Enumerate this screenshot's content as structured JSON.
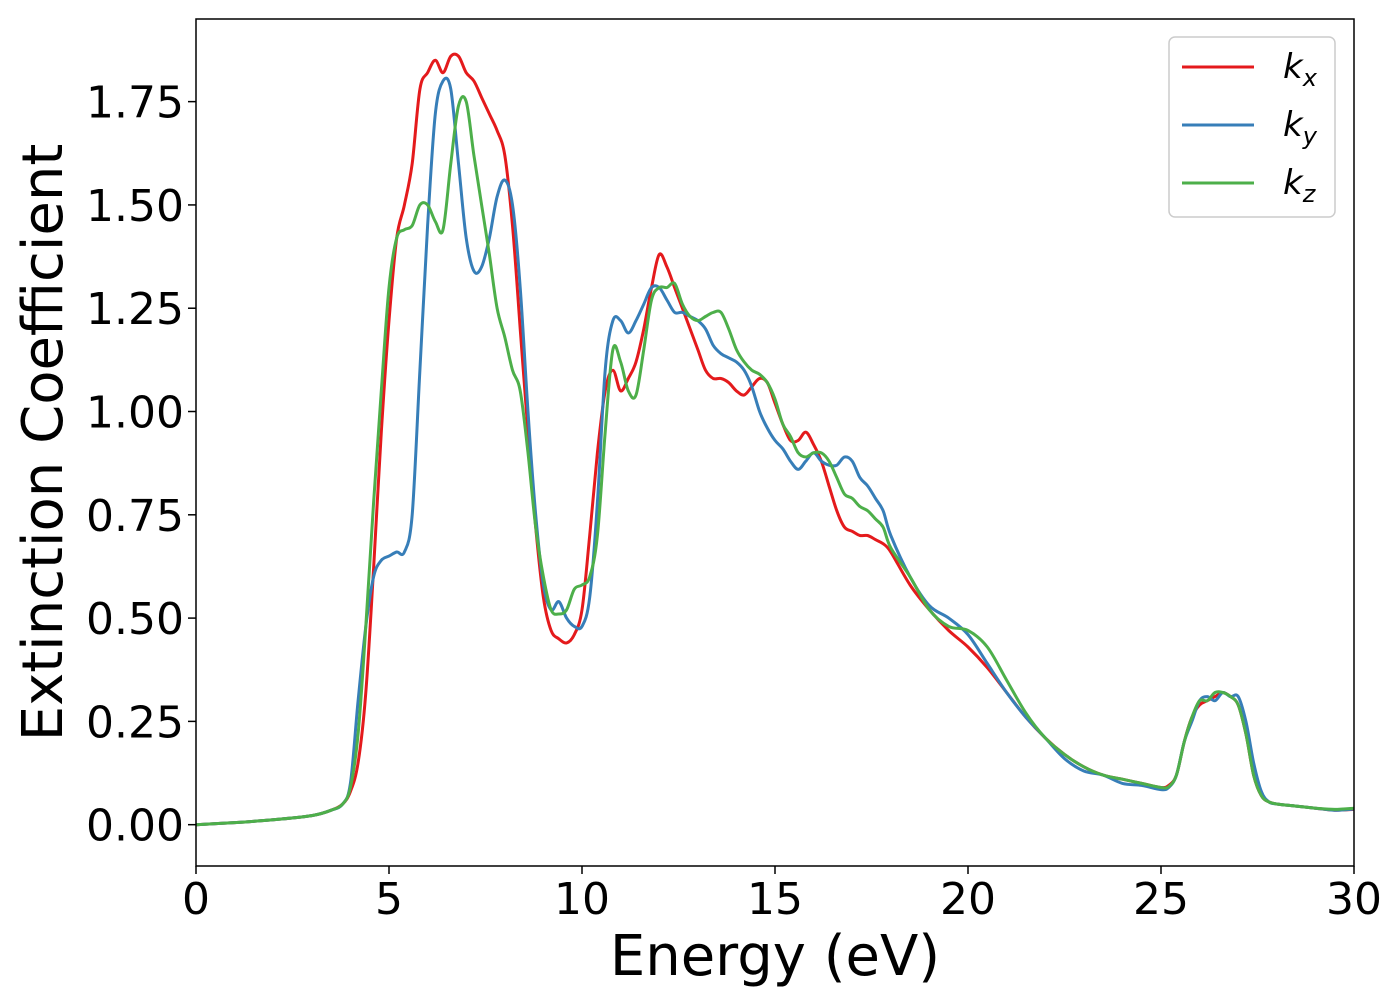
{
  "chart_data": {
    "type": "line",
    "title": "",
    "xlabel": "Energy (eV)",
    "ylabel": "Extinction Coefficient",
    "xlim": [
      0,
      30
    ],
    "ylim": [
      -0.1,
      1.95
    ],
    "xticks": [
      0,
      5,
      10,
      15,
      20,
      25,
      30
    ],
    "xtick_labels": [
      "0",
      "5",
      "10",
      "15",
      "20",
      "25",
      "30"
    ],
    "yticks": [
      0.0,
      0.25,
      0.5,
      0.75,
      1.0,
      1.25,
      1.5,
      1.75
    ],
    "ytick_labels": [
      "0.00",
      "0.25",
      "0.50",
      "0.75",
      "1.00",
      "1.25",
      "1.50",
      "1.75"
    ],
    "grid": false,
    "legend_position": "top-right",
    "series": [
      {
        "name": "k",
        "subscript": "x",
        "color": "#e41a1c",
        "x": [
          0,
          1,
          2,
          3,
          3.5,
          3.8,
          4.0,
          4.2,
          4.4,
          4.6,
          4.8,
          5.0,
          5.2,
          5.4,
          5.6,
          5.8,
          6.0,
          6.2,
          6.4,
          6.6,
          6.8,
          7.0,
          7.2,
          7.4,
          7.6,
          7.8,
          8.0,
          8.2,
          8.4,
          8.6,
          8.8,
          9.0,
          9.2,
          9.4,
          9.6,
          9.8,
          10.0,
          10.2,
          10.4,
          10.6,
          10.8,
          11.0,
          11.2,
          11.4,
          11.6,
          11.8,
          12.0,
          12.2,
          12.4,
          12.6,
          12.8,
          13.0,
          13.2,
          13.4,
          13.6,
          13.8,
          14.0,
          14.2,
          14.4,
          14.6,
          14.8,
          15.0,
          15.2,
          15.4,
          15.6,
          15.8,
          16.0,
          16.2,
          16.4,
          16.6,
          16.8,
          17.0,
          17.2,
          17.4,
          17.6,
          17.8,
          18.0,
          18.5,
          19.0,
          19.5,
          20.0,
          20.5,
          21.0,
          21.5,
          22.0,
          22.5,
          23.0,
          23.5,
          24.0,
          24.5,
          25.0,
          25.2,
          25.4,
          25.6,
          25.8,
          26.0,
          26.2,
          26.4,
          26.6,
          26.8,
          27.0,
          27.2,
          27.4,
          27.6,
          27.8,
          28.0,
          28.5,
          29.0,
          29.5,
          30.0
        ],
        "y": [
          0.0,
          0.005,
          0.012,
          0.022,
          0.035,
          0.05,
          0.08,
          0.15,
          0.32,
          0.62,
          0.95,
          1.22,
          1.42,
          1.5,
          1.6,
          1.78,
          1.82,
          1.85,
          1.82,
          1.86,
          1.86,
          1.82,
          1.8,
          1.76,
          1.72,
          1.68,
          1.62,
          1.45,
          1.2,
          0.95,
          0.72,
          0.55,
          0.47,
          0.45,
          0.44,
          0.46,
          0.52,
          0.7,
          0.9,
          1.05,
          1.1,
          1.05,
          1.08,
          1.12,
          1.2,
          1.3,
          1.38,
          1.35,
          1.3,
          1.25,
          1.2,
          1.15,
          1.1,
          1.08,
          1.08,
          1.07,
          1.05,
          1.04,
          1.06,
          1.08,
          1.07,
          1.02,
          0.97,
          0.93,
          0.93,
          0.95,
          0.92,
          0.88,
          0.82,
          0.76,
          0.72,
          0.71,
          0.7,
          0.7,
          0.69,
          0.68,
          0.66,
          0.58,
          0.52,
          0.47,
          0.43,
          0.38,
          0.32,
          0.26,
          0.21,
          0.17,
          0.14,
          0.12,
          0.11,
          0.1,
          0.09,
          0.095,
          0.12,
          0.2,
          0.26,
          0.29,
          0.3,
          0.31,
          0.32,
          0.31,
          0.29,
          0.22,
          0.12,
          0.07,
          0.055,
          0.05,
          0.045,
          0.04,
          0.035,
          0.037
        ]
      },
      {
        "name": "k",
        "subscript": "y",
        "color": "#377eb8",
        "x": [
          0,
          1,
          2,
          3,
          3.5,
          3.8,
          4.0,
          4.2,
          4.4,
          4.6,
          4.8,
          5.0,
          5.2,
          5.4,
          5.6,
          5.8,
          6.0,
          6.2,
          6.4,
          6.6,
          6.8,
          7.0,
          7.2,
          7.4,
          7.6,
          7.8,
          8.0,
          8.2,
          8.4,
          8.6,
          8.8,
          9.0,
          9.2,
          9.4,
          9.6,
          9.8,
          10.0,
          10.2,
          10.4,
          10.6,
          10.8,
          11.0,
          11.2,
          11.4,
          11.6,
          11.8,
          12.0,
          12.2,
          12.4,
          12.6,
          12.8,
          13.0,
          13.2,
          13.4,
          13.6,
          13.8,
          14.0,
          14.2,
          14.4,
          14.6,
          14.8,
          15.0,
          15.2,
          15.4,
          15.6,
          15.8,
          16.0,
          16.2,
          16.4,
          16.6,
          16.8,
          17.0,
          17.2,
          17.4,
          17.6,
          17.8,
          18.0,
          18.5,
          19.0,
          19.5,
          20.0,
          20.5,
          21.0,
          21.5,
          22.0,
          22.5,
          23.0,
          23.5,
          24.0,
          24.5,
          25.0,
          25.2,
          25.4,
          25.6,
          25.8,
          26.0,
          26.2,
          26.4,
          26.6,
          26.8,
          27.0,
          27.2,
          27.4,
          27.6,
          27.8,
          28.0,
          28.5,
          29.0,
          29.5,
          30.0
        ],
        "y": [
          0.0,
          0.005,
          0.012,
          0.022,
          0.035,
          0.05,
          0.1,
          0.3,
          0.48,
          0.6,
          0.64,
          0.65,
          0.66,
          0.66,
          0.75,
          1.1,
          1.45,
          1.72,
          1.8,
          1.78,
          1.6,
          1.42,
          1.34,
          1.35,
          1.42,
          1.52,
          1.56,
          1.5,
          1.3,
          1.0,
          0.75,
          0.58,
          0.52,
          0.54,
          0.5,
          0.48,
          0.48,
          0.55,
          0.78,
          1.1,
          1.22,
          1.22,
          1.19,
          1.22,
          1.26,
          1.3,
          1.3,
          1.27,
          1.24,
          1.24,
          1.23,
          1.22,
          1.2,
          1.16,
          1.14,
          1.13,
          1.12,
          1.1,
          1.06,
          1.0,
          0.96,
          0.93,
          0.91,
          0.88,
          0.86,
          0.88,
          0.9,
          0.88,
          0.87,
          0.87,
          0.89,
          0.88,
          0.84,
          0.82,
          0.79,
          0.76,
          0.7,
          0.6,
          0.53,
          0.5,
          0.46,
          0.39,
          0.32,
          0.26,
          0.21,
          0.16,
          0.13,
          0.12,
          0.1,
          0.095,
          0.085,
          0.09,
          0.12,
          0.2,
          0.25,
          0.3,
          0.31,
          0.3,
          0.32,
          0.31,
          0.31,
          0.25,
          0.15,
          0.08,
          0.055,
          0.05,
          0.045,
          0.04,
          0.035,
          0.038
        ]
      },
      {
        "name": "k",
        "subscript": "z",
        "color": "#4daf4a",
        "x": [
          0,
          1,
          2,
          3,
          3.5,
          3.8,
          4.0,
          4.2,
          4.4,
          4.6,
          4.8,
          5.0,
          5.2,
          5.4,
          5.6,
          5.8,
          6.0,
          6.2,
          6.4,
          6.6,
          6.8,
          7.0,
          7.2,
          7.4,
          7.6,
          7.8,
          8.0,
          8.2,
          8.4,
          8.6,
          8.8,
          9.0,
          9.2,
          9.4,
          9.6,
          9.8,
          10.0,
          10.2,
          10.4,
          10.6,
          10.8,
          11.0,
          11.2,
          11.4,
          11.6,
          11.8,
          12.0,
          12.2,
          12.4,
          12.6,
          12.8,
          13.0,
          13.2,
          13.4,
          13.6,
          13.8,
          14.0,
          14.2,
          14.4,
          14.6,
          14.8,
          15.0,
          15.2,
          15.4,
          15.6,
          15.8,
          16.0,
          16.2,
          16.4,
          16.6,
          16.8,
          17.0,
          17.2,
          17.4,
          17.6,
          17.8,
          18.0,
          18.5,
          19.0,
          19.5,
          20.0,
          20.5,
          21.0,
          21.5,
          22.0,
          22.5,
          23.0,
          23.5,
          24.0,
          24.5,
          25.0,
          25.2,
          25.4,
          25.6,
          25.8,
          26.0,
          26.2,
          26.4,
          26.6,
          26.8,
          27.0,
          27.2,
          27.4,
          27.6,
          27.8,
          28.0,
          28.5,
          29.0,
          29.5,
          30.0
        ],
        "y": [
          0.0,
          0.005,
          0.012,
          0.022,
          0.035,
          0.05,
          0.09,
          0.22,
          0.48,
          0.78,
          1.05,
          1.3,
          1.42,
          1.44,
          1.45,
          1.5,
          1.5,
          1.46,
          1.44,
          1.6,
          1.74,
          1.75,
          1.62,
          1.5,
          1.38,
          1.25,
          1.18,
          1.1,
          1.05,
          0.9,
          0.72,
          0.6,
          0.52,
          0.51,
          0.52,
          0.57,
          0.58,
          0.6,
          0.7,
          0.95,
          1.15,
          1.12,
          1.05,
          1.04,
          1.15,
          1.27,
          1.3,
          1.3,
          1.31,
          1.26,
          1.23,
          1.22,
          1.23,
          1.24,
          1.24,
          1.2,
          1.15,
          1.12,
          1.1,
          1.09,
          1.07,
          1.03,
          0.97,
          0.94,
          0.9,
          0.89,
          0.9,
          0.9,
          0.88,
          0.84,
          0.8,
          0.79,
          0.77,
          0.76,
          0.74,
          0.72,
          0.67,
          0.6,
          0.52,
          0.48,
          0.47,
          0.43,
          0.35,
          0.27,
          0.21,
          0.17,
          0.14,
          0.12,
          0.11,
          0.1,
          0.09,
          0.092,
          0.12,
          0.2,
          0.26,
          0.3,
          0.3,
          0.32,
          0.32,
          0.31,
          0.29,
          0.22,
          0.12,
          0.07,
          0.055,
          0.05,
          0.045,
          0.04,
          0.037,
          0.04
        ]
      }
    ]
  }
}
